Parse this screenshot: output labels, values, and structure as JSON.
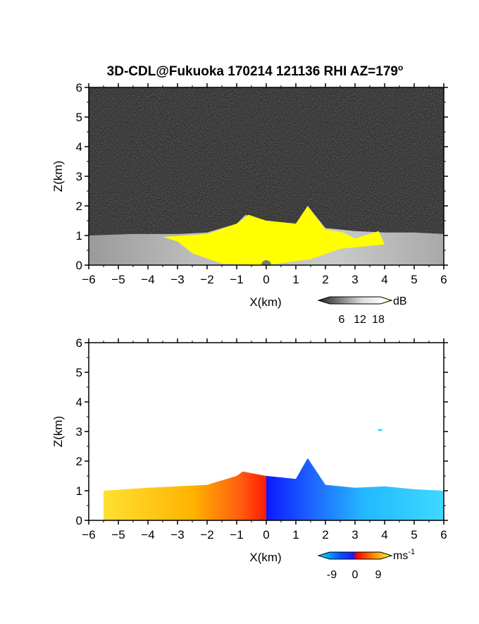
{
  "title": "3D-CDL@Fukuoka 170214 121136 RHI AZ=179",
  "title_degree": "o",
  "chart_data": [
    {
      "type": "heatmap",
      "name": "reflectivity",
      "xlabel": "X(km)",
      "ylabel": "Z(km)",
      "xlim": [
        -6,
        6
      ],
      "ylim": [
        0,
        6
      ],
      "xticks": [
        -6,
        -5,
        -4,
        -3,
        -2,
        -1,
        0,
        1,
        2,
        3,
        4,
        5,
        6
      ],
      "yticks": [
        0,
        1,
        2,
        3,
        4,
        5,
        6
      ],
      "background": "noise (dark gray)",
      "colorbar": {
        "label": "dB",
        "ticks": [
          6,
          12,
          18
        ],
        "colors": [
          "#000000",
          "#ffffff",
          "#ffff00"
        ]
      },
      "echo_top_km": [
        {
          "x": -6.0,
          "z": 1.0
        },
        {
          "x": -4.5,
          "z": 1.05
        },
        {
          "x": -3.0,
          "z": 1.05
        },
        {
          "x": -2.0,
          "z": 1.1
        },
        {
          "x": -1.0,
          "z": 1.4
        },
        {
          "x": -0.7,
          "z": 1.7
        },
        {
          "x": 0.0,
          "z": 1.5
        },
        {
          "x": 1.0,
          "z": 1.4
        },
        {
          "x": 1.4,
          "z": 2.0
        },
        {
          "x": 2.0,
          "z": 1.25
        },
        {
          "x": 3.0,
          "z": 1.15
        },
        {
          "x": 4.0,
          "z": 1.1
        },
        {
          "x": 5.0,
          "z": 1.1
        },
        {
          "x": 6.0,
          "z": 1.05
        }
      ],
      "strong_region_km": [
        {
          "x": -3.5,
          "z": 0.95
        },
        {
          "x": -2.0,
          "z": 1.05
        },
        {
          "x": -1.0,
          "z": 1.4
        },
        {
          "x": -0.6,
          "z": 1.7
        },
        {
          "x": 0.0,
          "z": 1.5
        },
        {
          "x": 1.0,
          "z": 1.4
        },
        {
          "x": 1.4,
          "z": 2.0
        },
        {
          "x": 2.0,
          "z": 1.2
        },
        {
          "x": 2.6,
          "z": 1.1
        },
        {
          "x": 3.0,
          "z": 0.9
        },
        {
          "x": 3.8,
          "z": 1.15
        },
        {
          "x": 4.0,
          "z": 0.7
        },
        {
          "x": 2.5,
          "z": 0.55
        },
        {
          "x": 1.5,
          "z": 0.2
        },
        {
          "x": 0.0,
          "z": 0.0
        },
        {
          "x": -1.5,
          "z": 0.05
        },
        {
          "x": -2.5,
          "z": 0.4
        },
        {
          "x": -3.0,
          "z": 0.8
        }
      ]
    },
    {
      "type": "heatmap",
      "name": "doppler_velocity",
      "xlabel": "X(km)",
      "ylabel": "Z(km)",
      "xlim": [
        -6,
        6
      ],
      "ylim": [
        0,
        6
      ],
      "xticks": [
        -6,
        -5,
        -4,
        -3,
        -2,
        -1,
        0,
        1,
        2,
        3,
        4,
        5,
        6
      ],
      "yticks": [
        0,
        1,
        2,
        3,
        4,
        5,
        6
      ],
      "colorbar": {
        "label": "ms",
        "label_exp": "-1",
        "ticks": [
          -9,
          0,
          9
        ],
        "colors": [
          "#00e5ff",
          "#0033ff",
          "#ff0000",
          "#ff8800",
          "#ffff33"
        ]
      },
      "echo_top_km": [
        {
          "x": -5.5,
          "z": 1.0
        },
        {
          "x": -4.0,
          "z": 1.1
        },
        {
          "x": -3.0,
          "z": 1.15
        },
        {
          "x": -2.0,
          "z": 1.2
        },
        {
          "x": -1.0,
          "z": 1.5
        },
        {
          "x": -0.8,
          "z": 1.65
        },
        {
          "x": 0.0,
          "z": 1.5
        },
        {
          "x": 1.0,
          "z": 1.4
        },
        {
          "x": 1.4,
          "z": 2.1
        },
        {
          "x": 2.0,
          "z": 1.2
        },
        {
          "x": 3.0,
          "z": 1.1
        },
        {
          "x": 4.0,
          "z": 1.15
        },
        {
          "x": 5.0,
          "z": 1.05
        },
        {
          "x": 6.0,
          "z": 1.0
        }
      ],
      "isolated_echo": {
        "x": 3.85,
        "z": 3.05
      }
    }
  ]
}
